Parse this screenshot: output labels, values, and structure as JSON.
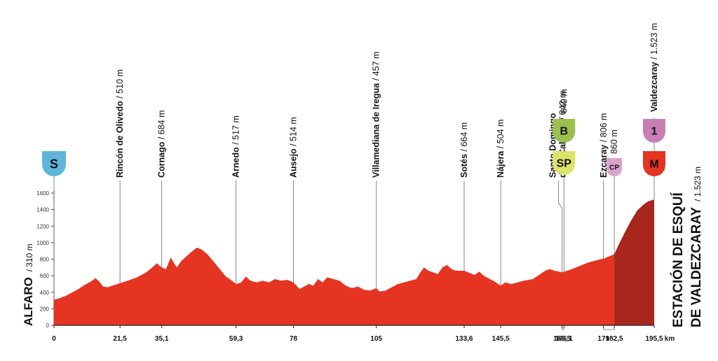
{
  "chart_data": {
    "type": "area",
    "unit_x": "km",
    "y_ticks": [
      "0",
      "200",
      "400",
      "600",
      "800",
      "1000",
      "1200",
      "1400",
      "1600"
    ],
    "ylim": [
      0,
      1700
    ],
    "xlim": [
      0,
      195.5
    ],
    "x_ticks": [
      "0",
      "21,5",
      "35,1",
      "59,3",
      "78",
      "105",
      "133,6",
      "145,5",
      "165,5",
      "166,1",
      "179",
      "182,5",
      "195,5"
    ],
    "x_tick_values": [
      0,
      21.5,
      35.1,
      59.3,
      78,
      105,
      133.6,
      145.5,
      165.5,
      166.1,
      179,
      182.5,
      195.5
    ],
    "x_end_label": "km",
    "profile": [
      [
        0,
        310
      ],
      [
        2,
        330
      ],
      [
        4,
        360
      ],
      [
        6,
        400
      ],
      [
        8,
        440
      ],
      [
        10,
        490
      ],
      [
        12,
        530
      ],
      [
        13.5,
        570
      ],
      [
        14.5,
        540
      ],
      [
        16,
        470
      ],
      [
        17.5,
        460
      ],
      [
        19,
        480
      ],
      [
        21.5,
        510
      ],
      [
        24,
        540
      ],
      [
        27,
        580
      ],
      [
        30,
        640
      ],
      [
        32,
        700
      ],
      [
        33.5,
        750
      ],
      [
        35.1,
        700
      ],
      [
        36.5,
        680
      ],
      [
        38,
        820
      ],
      [
        39,
        760
      ],
      [
        40,
        700
      ],
      [
        41.5,
        780
      ],
      [
        43,
        830
      ],
      [
        44.5,
        880
      ],
      [
        46.5,
        940
      ],
      [
        48,
        920
      ],
      [
        50,
        860
      ],
      [
        52,
        770
      ],
      [
        54,
        680
      ],
      [
        56,
        590
      ],
      [
        58,
        540
      ],
      [
        59.3,
        500
      ],
      [
        61,
        520
      ],
      [
        62.5,
        590
      ],
      [
        64,
        540
      ],
      [
        66,
        520
      ],
      [
        68,
        540
      ],
      [
        70,
        520
      ],
      [
        72,
        560
      ],
      [
        74,
        540
      ],
      [
        76,
        550
      ],
      [
        78,
        520
      ],
      [
        80,
        440
      ],
      [
        81.5,
        470
      ],
      [
        83,
        500
      ],
      [
        84.5,
        480
      ],
      [
        86,
        560
      ],
      [
        87.5,
        520
      ],
      [
        89,
        580
      ],
      [
        91,
        560
      ],
      [
        93,
        540
      ],
      [
        95,
        480
      ],
      [
        97,
        450
      ],
      [
        99,
        470
      ],
      [
        101,
        430
      ],
      [
        103,
        420
      ],
      [
        105,
        450
      ],
      [
        106,
        410
      ],
      [
        108,
        420
      ],
      [
        110,
        460
      ],
      [
        112,
        500
      ],
      [
        114,
        520
      ],
      [
        116,
        540
      ],
      [
        118,
        560
      ],
      [
        119.5,
        650
      ],
      [
        120.5,
        700
      ],
      [
        122,
        660
      ],
      [
        123.5,
        640
      ],
      [
        125,
        620
      ],
      [
        126.5,
        700
      ],
      [
        128,
        730
      ],
      [
        129.5,
        680
      ],
      [
        131,
        660
      ],
      [
        133.6,
        660
      ],
      [
        135,
        640
      ],
      [
        137,
        610
      ],
      [
        138.5,
        650
      ],
      [
        140,
        600
      ],
      [
        142,
        560
      ],
      [
        143.5,
        530
      ],
      [
        145.5,
        480
      ],
      [
        147,
        520
      ],
      [
        149,
        500
      ],
      [
        151,
        520
      ],
      [
        153,
        540
      ],
      [
        156,
        560
      ],
      [
        158,
        610
      ],
      [
        160,
        660
      ],
      [
        161.5,
        680
      ],
      [
        163,
        660
      ],
      [
        165.5,
        642
      ],
      [
        166.1,
        649
      ],
      [
        168,
        670
      ],
      [
        170,
        700
      ],
      [
        172,
        730
      ],
      [
        174,
        760
      ],
      [
        176,
        780
      ],
      [
        178,
        800
      ],
      [
        179,
        806
      ],
      [
        180.5,
        830
      ],
      [
        182.5,
        860
      ],
      [
        184,
        980
      ],
      [
        186,
        1130
      ],
      [
        188,
        1270
      ],
      [
        190,
        1390
      ],
      [
        192,
        1460
      ],
      [
        193.5,
        1500
      ],
      [
        195.5,
        1523
      ]
    ],
    "climb_start_km": 182.5,
    "area_color": "#e63422",
    "climb_color": "#a8261b",
    "start_label": "ALFARO",
    "start_alt": "/ 310 m",
    "finish_label_1": "ESTACIÓN DE ESQUÍ",
    "finish_label_2": "DE VALDEZCARAY",
    "finish_alt": "/ 1.523 m",
    "places": [
      {
        "km": 21.5,
        "name": "Rincón de Olivedo",
        "alt": " / 510 m"
      },
      {
        "km": 35.1,
        "name": "Cornago",
        "alt": " / 684 m"
      },
      {
        "km": 59.3,
        "name": "Arnedo",
        "alt": " / 517 m"
      },
      {
        "km": 78,
        "name": "Ausejo",
        "alt": " / 514 m"
      },
      {
        "km": 105,
        "name": "Villamediana de Iregua",
        "alt": " / 457 m"
      },
      {
        "km": 133.6,
        "name": "Sotés",
        "alt": " / 664 m"
      },
      {
        "km": 145.5,
        "name": "Nájera",
        "alt": " / 504 m"
      },
      {
        "km": 179,
        "name": "Ezcaray",
        "alt": " / 806 m"
      },
      {
        "km": 195.5,
        "name": "Valdezcaray",
        "alt": " / 1.523 m"
      }
    ],
    "santo_domingo": {
      "line1": "Santo Domingo",
      "line2": "de la Calzada",
      "alt": " / 642 m"
    },
    "badges": [
      {
        "text": "S",
        "color": "#5fb6d9",
        "km": 0
      },
      {
        "text": "B",
        "color": "#9bbf50",
        "km": 166.1,
        "alt": "649 m"
      },
      {
        "text": "SP",
        "color": "#dbe36a",
        "km": 166.1
      },
      {
        "text": "CP",
        "color": "#d9a3cb",
        "km": 182.5,
        "alt": "860 m"
      },
      {
        "text": "1",
        "color": "#c87fb5",
        "km": 195.5
      },
      {
        "text": "M",
        "color": "#e63422",
        "km": 195.5
      }
    ]
  }
}
